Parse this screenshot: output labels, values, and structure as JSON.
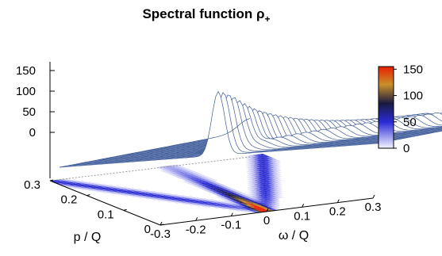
{
  "chart_data": {
    "type": "surface",
    "title": "Spectral function ρ",
    "title_subscript": "+",
    "xlabel": "ω / Q",
    "ylabel": "p / Q",
    "x_ticks": [
      "-0.3",
      "-0.2",
      "-0.1",
      "0",
      "0.1",
      "0.2",
      "0.3"
    ],
    "y_ticks": [
      "0",
      "0.1",
      "0.2",
      "0.3"
    ],
    "z_ticks": [
      "0",
      "50",
      "100",
      "150"
    ],
    "x_range": [
      -0.3,
      0.3
    ],
    "y_range": [
      0,
      0.3
    ],
    "z_range": [
      0,
      160
    ],
    "colorbar_ticks": [
      "0",
      "50",
      "100",
      "150"
    ],
    "colorbar_range": [
      0,
      155
    ],
    "colormap": [
      "#f4f4ff",
      "#2b2bd8",
      "#1a1a40",
      "#c8902a",
      "#e81e00"
    ],
    "surface_color": "#3d5a99",
    "peak": {
      "omega": 0.0,
      "p": 0.0,
      "value": 155
    },
    "features": "sharp peak near omega=p, two shoulders at omega=±p, background near 0"
  }
}
